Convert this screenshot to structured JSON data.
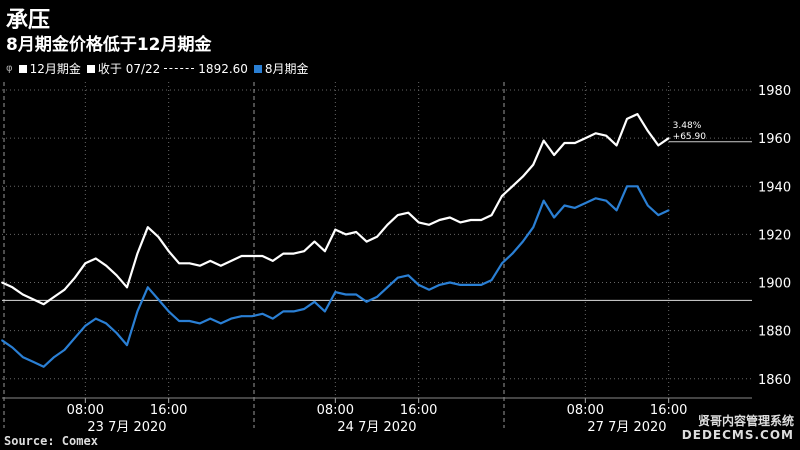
{
  "title": "承压",
  "subtitle": "8月期金价格低于12月期金",
  "legend": {
    "series1": "12月期金",
    "close_label": "收于 07/22",
    "close_value": "1892.60",
    "series2": "8月期金"
  },
  "source": "Source: Comex",
  "watermark": {
    "line1": "贤哥内容管理系统",
    "line2": "DEDECMS.COM"
  },
  "colors": {
    "background": "#000000",
    "dec": "#ffffff",
    "aug": "#2a7fd4"
  },
  "chart_data": {
    "type": "line",
    "ylim": [
      1852,
      1985
    ],
    "yticks": [
      1860,
      1880,
      1900,
      1920,
      1940,
      1960,
      1980
    ],
    "xticks": [
      {
        "label": "08:00",
        "t": 8
      },
      {
        "label": "16:00",
        "t": 16
      },
      {
        "label": "08:00",
        "t": 32
      },
      {
        "label": "16:00",
        "t": 40
      },
      {
        "label": "08:00",
        "t": 56
      },
      {
        "label": "16:00",
        "t": 64
      }
    ],
    "days": [
      {
        "label": "23 7月 2020",
        "t": 12
      },
      {
        "label": "24 7月 2020",
        "t": 36
      },
      {
        "label": "27 7月 2020",
        "t": 60
      }
    ],
    "day_boundaries": [
      0,
      24,
      48
    ],
    "t_range": [
      0,
      72
    ],
    "reference_line": {
      "label": "收于 07/22",
      "value": 1892.6
    },
    "annotation": {
      "pct": "3.48%",
      "change": "+65.90",
      "value": 1958.5
    },
    "series": [
      {
        "name": "12月期金",
        "t": [
          0,
          1,
          2,
          3,
          4,
          5,
          6,
          7,
          8,
          9,
          10,
          11,
          12,
          13,
          14,
          15,
          16,
          17,
          18,
          19,
          20,
          21,
          22,
          23,
          24,
          25,
          26,
          27,
          28,
          29,
          30,
          31,
          32,
          33,
          34,
          35,
          36,
          37,
          38,
          39,
          40,
          41,
          42,
          43,
          44,
          45,
          46,
          47,
          48,
          49,
          50,
          51,
          52,
          53,
          54,
          55,
          56,
          57,
          58,
          59,
          60,
          61,
          62,
          63,
          64
        ],
        "values": [
          1900,
          1898,
          1895,
          1893,
          1891,
          1894,
          1897,
          1902,
          1908,
          1910,
          1907,
          1903,
          1898,
          1912,
          1923,
          1919,
          1913,
          1908,
          1908,
          1907,
          1909,
          1907,
          1909,
          1911,
          1911,
          1911,
          1909,
          1912,
          1912,
          1913,
          1917,
          1913,
          1922,
          1920,
          1921,
          1917,
          1919,
          1924,
          1928,
          1929,
          1925,
          1924,
          1926,
          1927,
          1925,
          1926,
          1926,
          1928,
          1936,
          1940,
          1944,
          1949,
          1959,
          1953,
          1958,
          1958,
          1960,
          1962,
          1961,
          1957,
          1968,
          1970,
          1963,
          1957,
          1960
        ]
      },
      {
        "name": "8月期金",
        "t": [
          0,
          1,
          2,
          3,
          4,
          5,
          6,
          7,
          8,
          9,
          10,
          11,
          12,
          13,
          14,
          15,
          16,
          17,
          18,
          19,
          20,
          21,
          22,
          23,
          24,
          25,
          26,
          27,
          28,
          29,
          30,
          31,
          32,
          33,
          34,
          35,
          36,
          37,
          38,
          39,
          40,
          41,
          42,
          43,
          44,
          45,
          46,
          47,
          48,
          49,
          50,
          51,
          52,
          53,
          54,
          55,
          56,
          57,
          58,
          59,
          60,
          61,
          62,
          63,
          64
        ],
        "values": [
          1876,
          1873,
          1869,
          1867,
          1865,
          1869,
          1872,
          1877,
          1882,
          1885,
          1883,
          1879,
          1874,
          1888,
          1898,
          1893,
          1888,
          1884,
          1884,
          1883,
          1885,
          1883,
          1885,
          1886,
          1886,
          1887,
          1885,
          1888,
          1888,
          1889,
          1892,
          1888,
          1896,
          1895,
          1895,
          1892,
          1894,
          1898,
          1902,
          1903,
          1899,
          1897,
          1899,
          1900,
          1899,
          1899,
          1899,
          1901,
          1908,
          1912,
          1917,
          1923,
          1934,
          1927,
          1932,
          1931,
          1933,
          1935,
          1934,
          1930,
          1940,
          1940,
          1932,
          1928,
          1930
        ]
      }
    ]
  }
}
